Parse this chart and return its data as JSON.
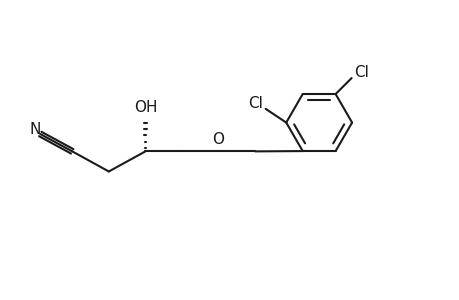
{
  "bg_color": "#ffffff",
  "line_color": "#1a1a1a",
  "line_width": 1.5,
  "font_size": 11,
  "figsize": [
    4.6,
    3.0
  ],
  "dpi": 100,
  "xlim": [
    0,
    10
  ],
  "ylim": [
    0,
    6.5
  ]
}
